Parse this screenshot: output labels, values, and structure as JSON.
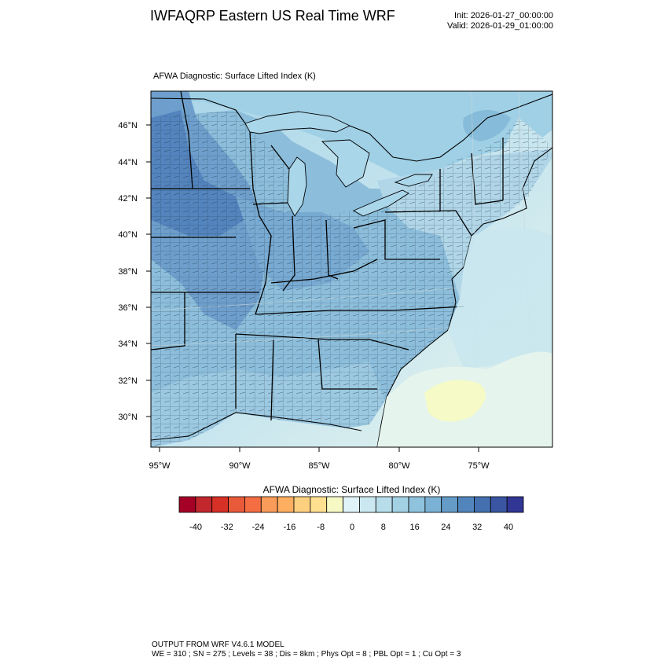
{
  "header": {
    "title": "IWFAQRP Eastern US Real Time WRF",
    "init": "Init: 2026-01-27_00:00:00",
    "valid": "Valid: 2026-01-29_01:00:00"
  },
  "map": {
    "subtitle": "AFWA Diagnostic: Surface Lifted Index   (K)",
    "lat_labels": [
      "46°N",
      "44°N",
      "42°N",
      "40°N",
      "38°N",
      "36°N",
      "34°N",
      "32°N",
      "30°N"
    ],
    "lon_labels": [
      "95°W",
      "90°W",
      "85°W",
      "80°W",
      "75°W"
    ],
    "extent": "Eastern United States (approx. 28.5°N–47.5°N, 96°W–70°W)",
    "field": "Surface Lifted Index",
    "colors": {
      "strong_stable": "#4a78b4",
      "stable": "#8bbcd9",
      "weak_stable": "#c4e2ee",
      "near_zero": "#eaf6ee",
      "slightly_unstable": "#f6fac8",
      "lakes": "#aad6ea"
    }
  },
  "colorbar": {
    "title": "AFWA Diagnostic: Surface Lifted Index  (K)",
    "tick_labels": [
      "-40",
      "-32",
      "-24",
      "-16",
      "-8",
      "0",
      "8",
      "16",
      "24",
      "32",
      "40"
    ],
    "colors": [
      "#a50026",
      "#c1272d",
      "#d73027",
      "#e85a3a",
      "#f46d43",
      "#f99b59",
      "#fdae61",
      "#fdd080",
      "#fee090",
      "#f6f9c4",
      "#e0f3f8",
      "#cbe8f0",
      "#b7ddea",
      "#a3d1e4",
      "#8fc3dd",
      "#7ab1d4",
      "#649bc7",
      "#5285bb",
      "#4470b0",
      "#3a56a2",
      "#313695"
    ]
  },
  "footer": {
    "line1": "OUTPUT FROM WRF V4.6.1 MODEL",
    "line2": "WE = 310 ; SN = 275 ; Levels = 38 ; Dis = 8km ; Phys Opt = 8 ; PBL Opt = 1 ; Cu Opt = 3"
  }
}
